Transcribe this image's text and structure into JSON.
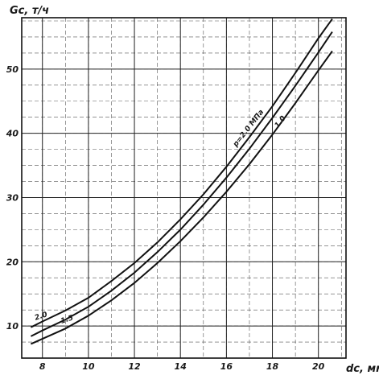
{
  "chart_data": {
    "type": "line",
    "ylabel": "Gc, т/ч",
    "xlabel": "dc, мм",
    "xlim": [
      7.1,
      21.2
    ],
    "ylim": [
      5,
      58
    ],
    "x_ticks": [
      8,
      10,
      12,
      14,
      16,
      18,
      20
    ],
    "y_ticks": [
      10,
      20,
      30,
      40,
      50
    ],
    "grid": true,
    "series": [
      {
        "name": "2.0",
        "x": [
          7.5,
          8,
          9,
          10,
          11,
          12,
          13,
          14,
          15,
          16,
          17,
          18,
          19,
          20,
          20.6
        ],
        "y": [
          9.8,
          10.7,
          12.4,
          14.4,
          17.0,
          19.8,
          23.0,
          26.6,
          30.5,
          34.8,
          39.4,
          44.2,
          49.4,
          54.8,
          57.8
        ]
      },
      {
        "name": "1.5",
        "x": [
          7.5,
          8,
          9,
          10,
          11,
          12,
          13,
          14,
          15,
          16,
          17,
          18,
          19,
          20,
          20.6
        ],
        "y": [
          8.4,
          9.3,
          11.0,
          13.0,
          15.5,
          18.3,
          21.5,
          25.0,
          28.9,
          33.1,
          37.6,
          42.4,
          47.4,
          52.6,
          55.8
        ]
      },
      {
        "name": "1.0",
        "x": [
          7.5,
          8,
          9,
          10,
          11,
          12,
          13,
          14,
          15,
          16,
          17,
          18,
          19,
          20,
          20.6
        ],
        "y": [
          7.2,
          8.0,
          9.6,
          11.6,
          14.0,
          16.7,
          19.8,
          23.2,
          26.9,
          30.9,
          35.2,
          39.8,
          44.7,
          49.8,
          52.8
        ]
      }
    ],
    "annotations": [
      {
        "text": "2.0",
        "series": "2.0"
      },
      {
        "text": "1.5",
        "series": "1.5"
      },
      {
        "text": "1.0",
        "series": "1.0"
      },
      {
        "text": "p=2.0 МПа",
        "series": "2.0"
      }
    ]
  }
}
